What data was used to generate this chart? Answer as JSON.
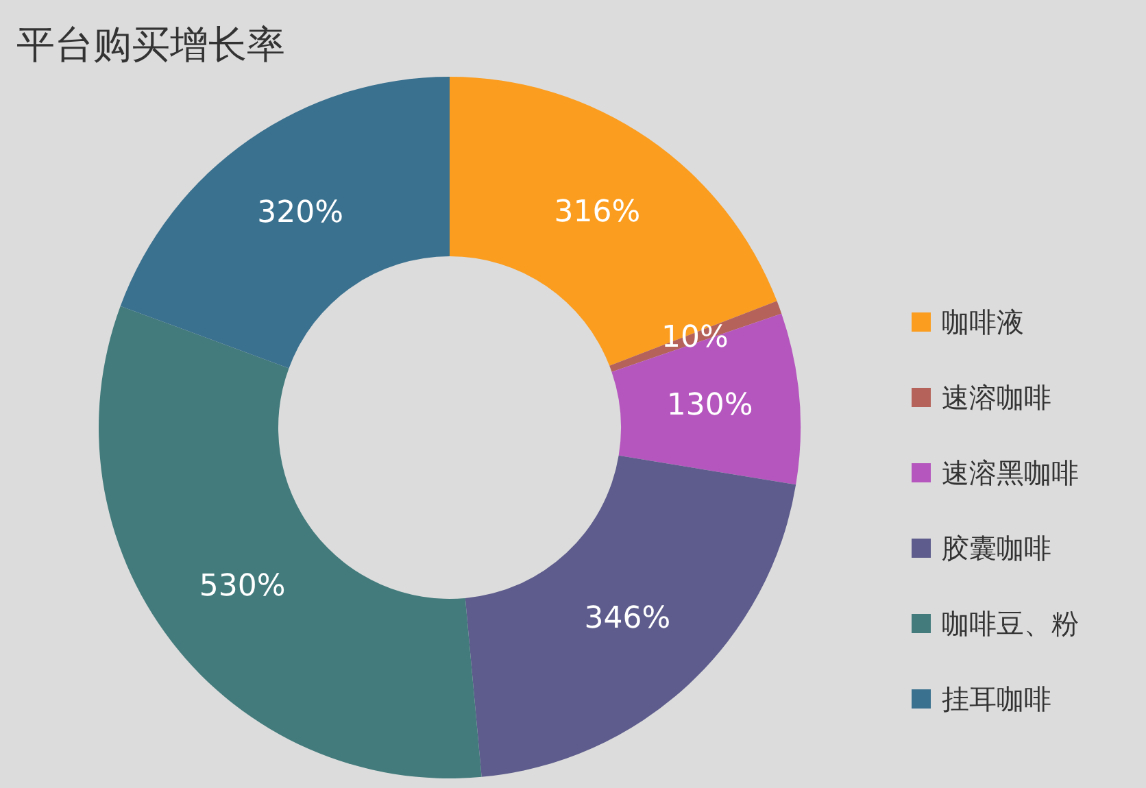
{
  "chart_data": {
    "type": "donut",
    "title": "平台购买增长率",
    "categories": [
      "咖啡液",
      "速溶咖啡",
      "速溶黑咖啡",
      "胶囊咖啡",
      "咖啡豆、粉",
      "挂耳咖啡"
    ],
    "values": [
      316,
      10,
      130,
      346,
      530,
      320
    ],
    "value_labels": [
      "316%",
      "10%",
      "130%",
      "346%",
      "530%",
      "320%"
    ],
    "colors": [
      "#fb9d1f",
      "#b5625a",
      "#b556be",
      "#5d5c8c",
      "#437b7c",
      "#3a718f"
    ],
    "legend": "right"
  }
}
